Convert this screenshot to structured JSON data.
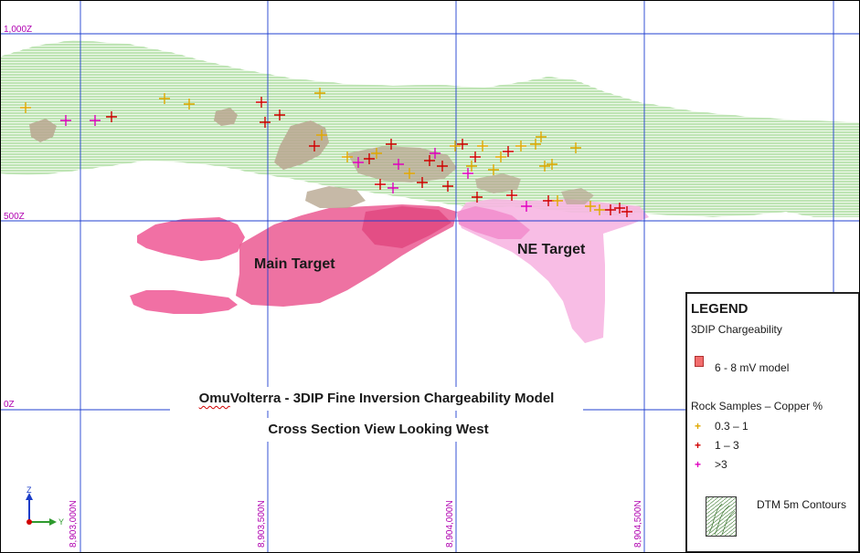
{
  "elevation_labels": [
    "1,000Z",
    "500Z",
    "0Z"
  ],
  "northing_labels": [
    "8,903,000N",
    "8,903,500N",
    "8,904,000N",
    "8,904,500N"
  ],
  "targets": {
    "main": "Main Target",
    "ne": "NE Target"
  },
  "title": {
    "line1_brand": "Omu",
    "line1_rest": " Volterra - 3DIP Fine Inversion Chargeability Model",
    "line2": "Cross Section View Looking West"
  },
  "legend": {
    "title": "LEGEND",
    "subtitle": "3DIP Chargeability",
    "chargeability_item": "6 - 8 mV model",
    "rock_samples_title": "Rock Samples – Copper %",
    "samples": [
      {
        "label": "0.3 – 1",
        "color": "#e0a800"
      },
      {
        "label": "1 – 3",
        "color": "#d00000"
      },
      {
        "label": ">3",
        "color": "#e000c0"
      }
    ],
    "dtm_item": "DTM 5m Contours"
  },
  "axis": {
    "z": "Z",
    "y": "Y"
  },
  "colors": {
    "contour_green": "#8fd07f",
    "grid_blue": "#2040d0",
    "main_target_pink": "#f0609a",
    "ne_target_pink": "#f7b6e2",
    "outcrop_tan": "#b8a791"
  }
}
